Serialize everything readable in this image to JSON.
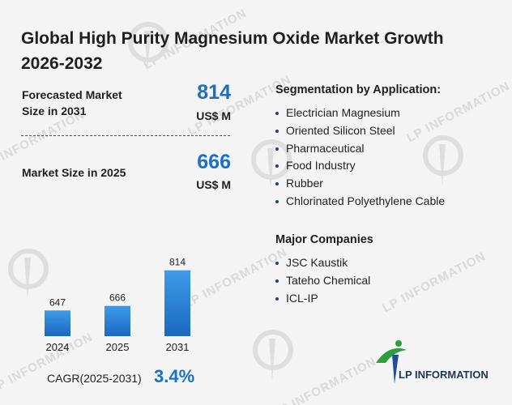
{
  "title": "Global High Purity Magnesium Oxide Market Growth 2026-2032",
  "forecast": {
    "label": "Forecasted Market Size in 2031",
    "value": "814",
    "unit": "US$ M"
  },
  "current": {
    "label": "Market Size in 2025",
    "value": "666",
    "unit": "US$ M"
  },
  "segmentation": {
    "heading": "Segmentation by Application:",
    "items": [
      "Electrician Magnesium",
      "Oriented Silicon Steel",
      "Pharmaceutical",
      "Food Industry",
      "Rubber",
      "Chlorinated Polyethylene Cable"
    ]
  },
  "companies": {
    "heading": "Major Companies",
    "items": [
      "JSC Kaustik",
      "Tateho Chemical",
      "ICL-IP"
    ]
  },
  "cagr": {
    "label": "CAGR(2025-2031)",
    "value": "3.4%"
  },
  "watermark": "LP INFORMATION",
  "logo": {
    "text": "LP INFORMATION",
    "icon": "lp-information-logo-icon"
  },
  "colors": {
    "accent": "#1a6fc9",
    "bar_top": "#3f9be8",
    "bar_bottom": "#1a68c2",
    "logo_green": "#2e9e3e"
  },
  "chart_data": {
    "type": "bar",
    "categories": [
      "2024",
      "2025",
      "2031"
    ],
    "values": [
      647,
      666,
      814
    ],
    "title": "",
    "xlabel": "",
    "ylabel": "",
    "grid": false,
    "legend": "none",
    "ylim": [
      540,
      830
    ]
  }
}
